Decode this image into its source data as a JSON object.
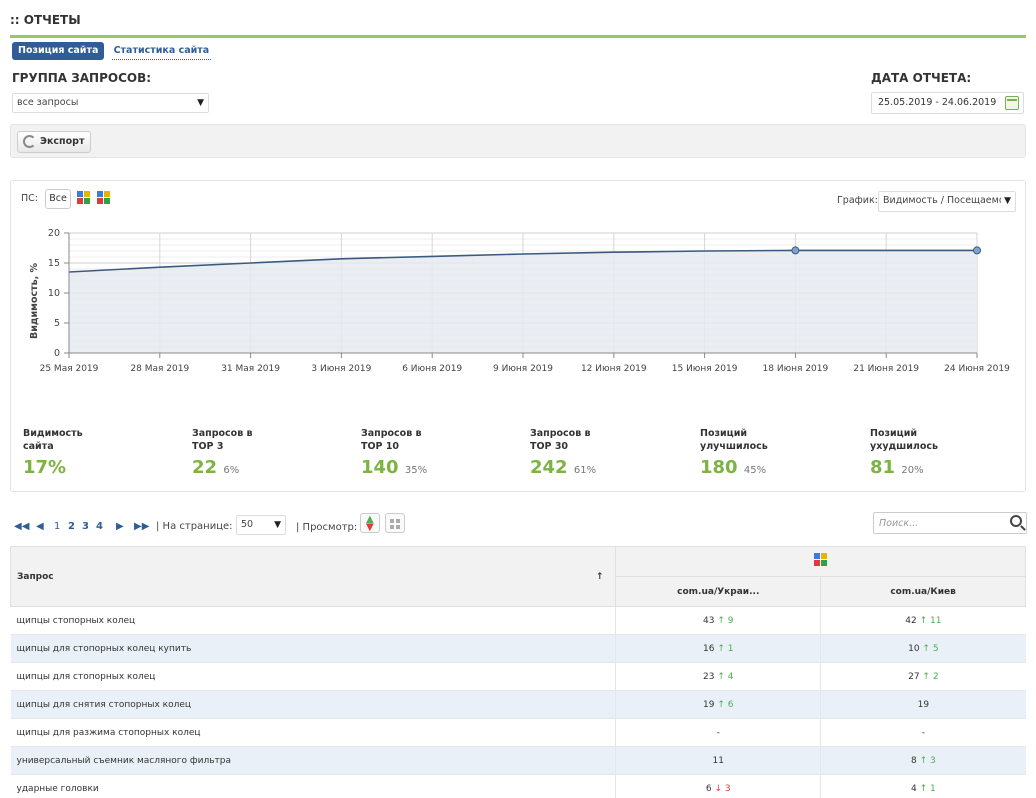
{
  "header": {
    "title": ":: ОТЧЕТЫ"
  },
  "tabs": [
    {
      "label": "Позиция сайта",
      "active": true
    },
    {
      "label": "Статистика сайта",
      "active": false
    }
  ],
  "query_group": {
    "label": "ГРУППА ЗАПРОСОВ:",
    "value": "все запросы"
  },
  "report_date": {
    "label": "ДАТА ОТЧЕТА:",
    "value": "25.05.2019 - 24.06.2019"
  },
  "export": {
    "label": "Экспорт"
  },
  "chart_panel": {
    "ps_label": "ПС:",
    "ps_all": "Все",
    "graph_label": "График:",
    "graph_select": "Видимость / Посещаемость"
  },
  "chart_data": {
    "type": "area",
    "ylabel": "Видимость, %",
    "ylim": [
      0,
      20
    ],
    "yticks": [
      0,
      5,
      10,
      15,
      20
    ],
    "x_labels": [
      "25 Мая 2019",
      "28 Мая 2019",
      "31 Мая 2019",
      "3 Июня 2019",
      "6 Июня 2019",
      "9 Июня 2019",
      "12 Июня 2019",
      "15 Июня 2019",
      "18 Июня 2019",
      "21 Июня 2019",
      "24 Июня 2019"
    ],
    "x": [
      "25 Мая 2019",
      "28 Мая 2019",
      "31 Мая 2019",
      "3 Июня 2019",
      "6 Июня 2019",
      "9 Июня 2019",
      "12 Июня 2019",
      "15 Июня 2019",
      "18 Июня 2019",
      "21 Июня 2019",
      "24 Июня 2019"
    ],
    "values": [
      13.5,
      14.3,
      15.0,
      15.7,
      16.1,
      16.5,
      16.8,
      17.0,
      17.1,
      17.1,
      17.1
    ],
    "markers": [
      8,
      10
    ],
    "grid": true
  },
  "stats": [
    {
      "title1": "Видимость",
      "title2": "сайта",
      "value": "17%",
      "pct": ""
    },
    {
      "title1": "Запросов в",
      "title2": "TOP 3",
      "value": "22",
      "pct": "6%"
    },
    {
      "title1": "Запросов в",
      "title2": "TOP 10",
      "value": "140",
      "pct": "35%"
    },
    {
      "title1": "Запросов в",
      "title2": "TOP 30",
      "value": "242",
      "pct": "61%"
    },
    {
      "title1": "Позиций",
      "title2": "улучшилось",
      "value": "180",
      "pct": "45%"
    },
    {
      "title1": "Позиций",
      "title2": "ухудшилось",
      "value": "81",
      "pct": "20%"
    }
  ],
  "pager": {
    "first": "⏮",
    "prev": "◀",
    "pages": [
      "1",
      "2",
      "3",
      "4"
    ],
    "next": "▶",
    "last": "⏭",
    "per_page_label": "| На странице:",
    "per_page_value": "50",
    "view_label": "| Просмотр:"
  },
  "search": {
    "placeholder": "Поиск..."
  },
  "table": {
    "query_header": "Запрос",
    "sort_arrow": "↑",
    "col1": "com.ua/Украи...",
    "col2": "com.ua/Киев",
    "rows": [
      {
        "q": "щипцы стопорных колец",
        "c1": "43",
        "c1d": "↑ 9",
        "c1dir": "up",
        "c2": "42",
        "c2d": "↑ 11",
        "c2dir": "up"
      },
      {
        "q": "щипцы для стопорных колец купить",
        "c1": "16",
        "c1d": "↑ 1",
        "c1dir": "up",
        "c2": "10",
        "c2d": "↑ 5",
        "c2dir": "up"
      },
      {
        "q": "щипцы для стопорных колец",
        "c1": "23",
        "c1d": "↑ 4",
        "c1dir": "up",
        "c2": "27",
        "c2d": "↑ 2",
        "c2dir": "up"
      },
      {
        "q": "щипцы для снятия стопорных колец",
        "c1": "19",
        "c1d": "↑ 6",
        "c1dir": "up",
        "c2": "19",
        "c2d": "",
        "c2dir": ""
      },
      {
        "q": "щипцы для разжима стопорных колец",
        "c1": "-",
        "c1d": "",
        "c1dir": "",
        "c2": "-",
        "c2d": "",
        "c2dir": ""
      },
      {
        "q": "универсальный съемник масляного фильтра",
        "c1": "11",
        "c1d": "",
        "c1dir": "",
        "c2": "8",
        "c2d": "↑ 3",
        "c2dir": "up"
      },
      {
        "q": "ударные головки",
        "c1": "6",
        "c1d": "↓ 3",
        "c1dir": "down",
        "c2": "4",
        "c2d": "↑ 1",
        "c2dir": "up"
      }
    ]
  },
  "colors": {
    "accent": "#7cb342",
    "tab_active": "#2f5e97",
    "header_line": "#9ac85f",
    "line": "#3b5a80",
    "fill": "#e6ebf1"
  }
}
